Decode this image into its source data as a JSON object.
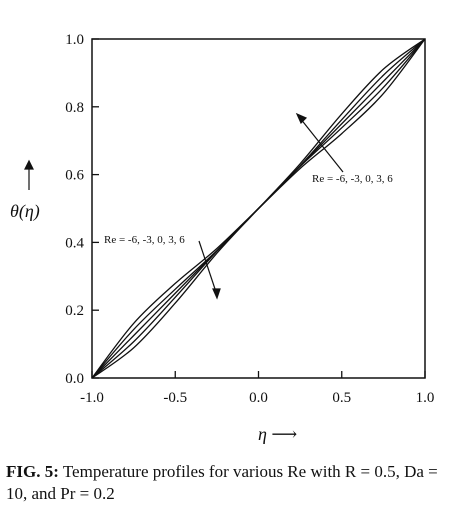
{
  "chart_data": {
    "type": "line",
    "xlabel": "η ⟶",
    "ylabel": "θ(η)",
    "xlim": [
      -1.0,
      1.0
    ],
    "ylim": [
      0.0,
      1.0
    ],
    "x_ticks": [
      "-1.0",
      "-0.5",
      "0.0",
      "0.5",
      "1.0"
    ],
    "y_ticks": [
      "0.0",
      "0.2",
      "0.4",
      "0.6",
      "0.8",
      "1.0"
    ],
    "grid": false,
    "series": [
      {
        "label": "Re = -6",
        "x": [
          -1.0,
          -0.75,
          -0.5,
          -0.25,
          0.0,
          0.25,
          0.5,
          0.75,
          1.0
        ],
        "y": [
          0.0,
          0.161,
          0.279,
          0.382,
          0.5,
          0.618,
          0.721,
          0.839,
          1.0
        ]
      },
      {
        "label": "Re = -3",
        "x": [
          -1.0,
          -0.75,
          -0.5,
          -0.25,
          0.0,
          0.25,
          0.5,
          0.75,
          1.0
        ],
        "y": [
          0.0,
          0.143,
          0.262,
          0.376,
          0.5,
          0.624,
          0.738,
          0.857,
          1.0
        ]
      },
      {
        "label": "Re = 0",
        "x": [
          -1.0,
          -0.75,
          -0.5,
          -0.25,
          0.0,
          0.25,
          0.5,
          0.75,
          1.0
        ],
        "y": [
          0.0,
          0.125,
          0.25,
          0.375,
          0.5,
          0.625,
          0.75,
          0.875,
          1.0
        ]
      },
      {
        "label": "Re = 3",
        "x": [
          -1.0,
          -0.75,
          -0.5,
          -0.25,
          0.0,
          0.25,
          0.5,
          0.75,
          1.0
        ],
        "y": [
          0.0,
          0.107,
          0.238,
          0.374,
          0.5,
          0.626,
          0.762,
          0.893,
          1.0
        ]
      },
      {
        "label": "Re = 6",
        "x": [
          -1.0,
          -0.75,
          -0.5,
          -0.25,
          0.0,
          0.25,
          0.5,
          0.75,
          1.0
        ],
        "y": [
          0.0,
          0.089,
          0.221,
          0.368,
          0.5,
          0.632,
          0.779,
          0.911,
          1.0
        ]
      }
    ],
    "annotations": [
      {
        "text": "Re = -6, -3, 0, 3, 6",
        "near": "lower-left curves"
      },
      {
        "text": "Re = -6, -3, 0, 3, 6",
        "near": "upper-right curves"
      }
    ]
  },
  "caption": {
    "label": "FIG. 5",
    "text": "Temperature profiles for various Re with R = 0.5, Da = 10, and Pr = 0.2"
  }
}
